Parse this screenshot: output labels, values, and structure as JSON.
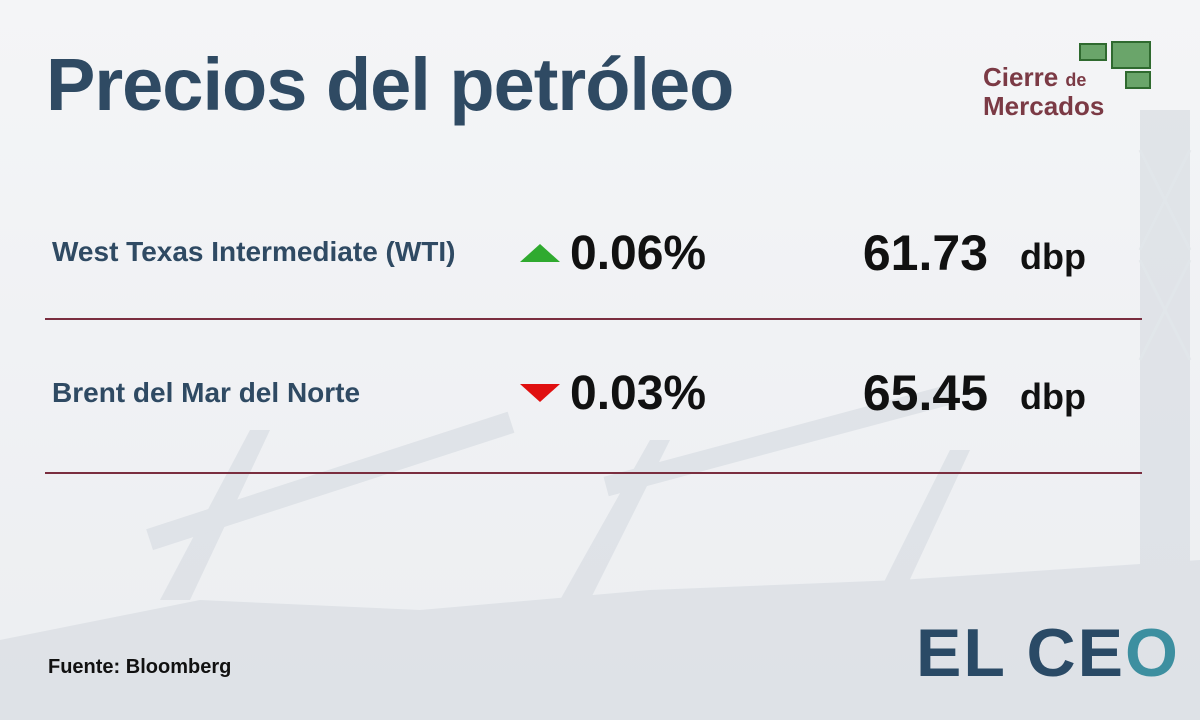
{
  "header": {
    "title": "Precios del petróleo",
    "badge": {
      "line1": "Cierre",
      "connector": "de",
      "line2": "Mercados"
    }
  },
  "table": {
    "rows": [
      {
        "name": "West Texas Intermediate (WTI)",
        "change": "0.06%",
        "price": "61.73",
        "unit": "dbp"
      },
      {
        "name": "Brent del Mar del Norte",
        "change": "0.03%",
        "price": "65.45",
        "unit": "dbp"
      }
    ]
  },
  "footer": {
    "source": "Fuente: Bloomberg",
    "logo": {
      "main": "EL CE",
      "accent": "O"
    }
  }
}
